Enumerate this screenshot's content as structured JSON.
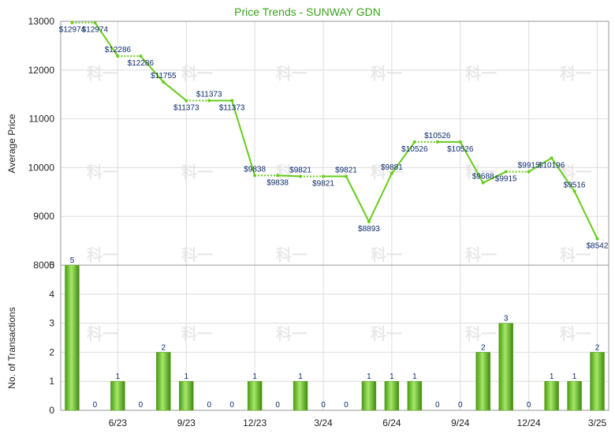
{
  "chart_data": [
    {
      "type": "line",
      "title": "Price Trends - SUNWAY GDN",
      "ylabel": "Average Price",
      "ylim": [
        8000,
        13000
      ],
      "yticks": [
        8000,
        9000,
        10000,
        11000,
        12000,
        13000
      ],
      "x_labels": [
        "6/23",
        "9/23",
        "12/23",
        "3/24",
        "6/24",
        "9/24",
        "12/24",
        "3/25"
      ],
      "label_prefix": "$",
      "points": [
        12974,
        12974,
        12286,
        12286,
        11755,
        11373,
        11373,
        11373,
        9838,
        9838,
        9821,
        9821,
        9821,
        8893,
        9881,
        10526,
        10526,
        10526,
        9688,
        9915,
        9915,
        10196,
        9516,
        8542
      ],
      "measured": [
        true,
        false,
        true,
        false,
        true,
        true,
        false,
        true,
        true,
        false,
        true,
        false,
        true,
        true,
        true,
        true,
        false,
        true,
        true,
        true,
        false,
        true,
        true,
        true
      ],
      "line_color": "#66cc1a"
    },
    {
      "type": "bar",
      "ylabel": "No. of Transactions",
      "ylim": [
        0,
        5
      ],
      "yticks": [
        0,
        1,
        2,
        3,
        4,
        5
      ],
      "values": [
        5,
        0,
        1,
        0,
        2,
        1,
        0,
        0,
        1,
        0,
        1,
        0,
        0,
        1,
        1,
        1,
        0,
        0,
        2,
        3,
        0,
        1,
        1,
        2
      ],
      "bar_color": "#66cc1a"
    }
  ],
  "watermark": "科一"
}
